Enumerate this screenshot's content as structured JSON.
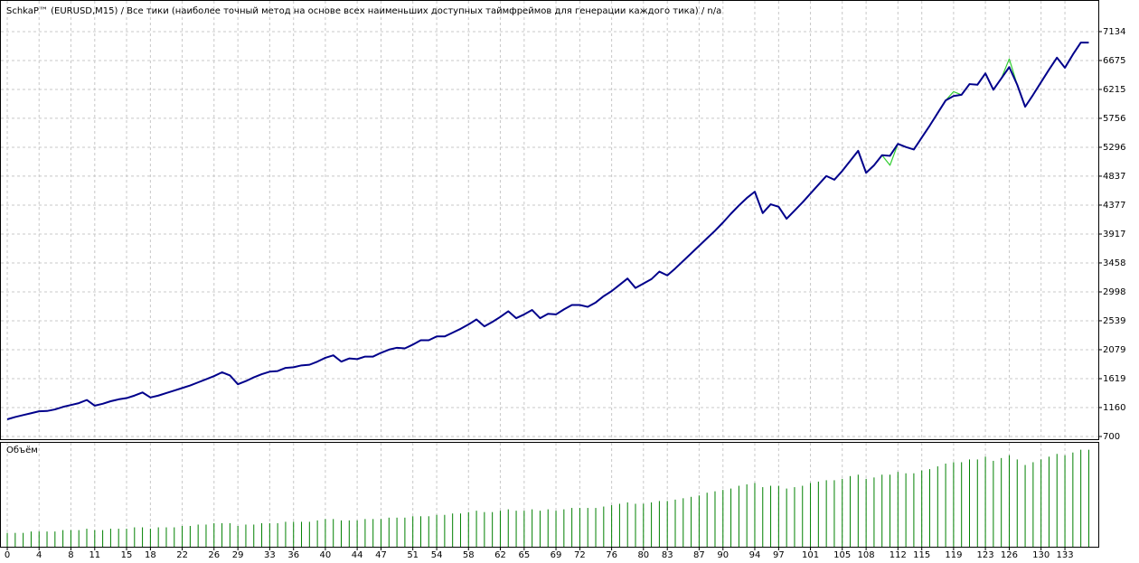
{
  "chart_data": [
    {
      "type": "line",
      "title": "SchkaP™ (EURUSD,M15) / Все тики (наиболее точный метод на основе всех наименьших доступных таймфреймов для генерации каждого тика) / n/a",
      "x": [
        0,
        1,
        2,
        3,
        4,
        5,
        6,
        7,
        8,
        9,
        10,
        11,
        12,
        13,
        14,
        15,
        16,
        17,
        18,
        19,
        20,
        21,
        22,
        23,
        24,
        25,
        26,
        27,
        28,
        29,
        30,
        31,
        32,
        33,
        34,
        35,
        36,
        37,
        38,
        39,
        40,
        41,
        42,
        43,
        44,
        45,
        46,
        47,
        48,
        49,
        50,
        51,
        52,
        53,
        54,
        55,
        56,
        57,
        58,
        59,
        60,
        61,
        62,
        63,
        64,
        65,
        66,
        67,
        68,
        69,
        70,
        71,
        72,
        73,
        74,
        75,
        76,
        77,
        78,
        79,
        80,
        81,
        82,
        83,
        84,
        85,
        86,
        87,
        88,
        89,
        90,
        91,
        92,
        93,
        94,
        95,
        96,
        97,
        98,
        99,
        100,
        101,
        102,
        103,
        104,
        105,
        106,
        107,
        108,
        109,
        110,
        111,
        112,
        113,
        114,
        115,
        116,
        117,
        118,
        119,
        120,
        121,
        122,
        123,
        124,
        125,
        126,
        127,
        128,
        129,
        130,
        131,
        132,
        133,
        134,
        135,
        136
      ],
      "series": [
        {
          "color": "#32cd32",
          "values": [
            973,
            1010,
            1040,
            1070,
            1100,
            1105,
            1130,
            1170,
            1200,
            1230,
            1280,
            1190,
            1220,
            1260,
            1290,
            1310,
            1350,
            1400,
            1320,
            1350,
            1390,
            1430,
            1470,
            1510,
            1560,
            1610,
            1660,
            1720,
            1670,
            1530,
            1580,
            1640,
            1690,
            1730,
            1740,
            1790,
            1800,
            1830,
            1840,
            1890,
            1950,
            1990,
            1890,
            1940,
            1930,
            1970,
            1970,
            2030,
            2080,
            2110,
            2100,
            2160,
            2230,
            2230,
            2290,
            2290,
            2350,
            2410,
            2480,
            2560,
            2450,
            2520,
            2600,
            2690,
            2580,
            2640,
            2710,
            2580,
            2650,
            2640,
            2720,
            2790,
            2790,
            2760,
            2830,
            2930,
            3010,
            3110,
            3210,
            3060,
            3130,
            3200,
            3320,
            3260,
            3370,
            3490,
            3610,
            3730,
            3850,
            3970,
            4100,
            4240,
            4370,
            4490,
            4590,
            4250,
            4390,
            4350,
            4160,
            4290,
            4420,
            4560,
            4700,
            4840,
            4780,
            4920,
            5080,
            5240,
            4890,
            5010,
            5170,
            5010,
            5350,
            5300,
            5260,
            5450,
            5640,
            5840,
            6040,
            6180,
            6130,
            6300,
            6290,
            6470,
            6210,
            6390,
            6700,
            6290,
            5940,
            6130,
            6330,
            6530,
            6720,
            6560,
            6770,
            6960,
            6960
          ]
        },
        {
          "color": "#00008b",
          "values": [
            973,
            1010,
            1040,
            1070,
            1100,
            1105,
            1130,
            1170,
            1200,
            1230,
            1280,
            1190,
            1220,
            1260,
            1290,
            1310,
            1350,
            1400,
            1320,
            1350,
            1390,
            1430,
            1470,
            1510,
            1560,
            1610,
            1660,
            1720,
            1670,
            1530,
            1580,
            1640,
            1690,
            1730,
            1740,
            1790,
            1800,
            1830,
            1840,
            1890,
            1950,
            1990,
            1890,
            1940,
            1930,
            1970,
            1970,
            2030,
            2080,
            2110,
            2100,
            2160,
            2230,
            2230,
            2290,
            2290,
            2350,
            2410,
            2480,
            2560,
            2450,
            2520,
            2600,
            2690,
            2580,
            2640,
            2710,
            2580,
            2650,
            2640,
            2720,
            2790,
            2790,
            2760,
            2830,
            2930,
            3010,
            3110,
            3210,
            3060,
            3130,
            3200,
            3320,
            3260,
            3370,
            3490,
            3610,
            3730,
            3850,
            3970,
            4100,
            4240,
            4370,
            4490,
            4590,
            4250,
            4390,
            4350,
            4160,
            4290,
            4420,
            4560,
            4700,
            4840,
            4780,
            4920,
            5080,
            5240,
            4890,
            5010,
            5170,
            5160,
            5350,
            5300,
            5260,
            5450,
            5640,
            5840,
            6040,
            6110,
            6130,
            6300,
            6290,
            6470,
            6210,
            6390,
            6570,
            6290,
            5940,
            6130,
            6330,
            6530,
            6720,
            6560,
            6770,
            6960,
            6960
          ]
        }
      ],
      "xlim": [
        -0.8,
        137.2
      ],
      "ylim": [
        657,
        7622
      ],
      "yticks": [
        700,
        1160,
        1619,
        2079,
        2539,
        2998,
        3458,
        3917,
        4377,
        4837,
        5296,
        5756,
        6215,
        6675,
        7134
      ],
      "grid": true
    },
    {
      "type": "bar",
      "title": "Объём",
      "color": "#008000",
      "values": [
        0.1,
        0.1,
        0.1,
        0.11,
        0.11,
        0.11,
        0.11,
        0.12,
        0.12,
        0.12,
        0.13,
        0.12,
        0.12,
        0.13,
        0.13,
        0.13,
        0.14,
        0.14,
        0.13,
        0.14,
        0.14,
        0.14,
        0.15,
        0.15,
        0.16,
        0.16,
        0.17,
        0.17,
        0.17,
        0.15,
        0.16,
        0.16,
        0.17,
        0.17,
        0.17,
        0.18,
        0.18,
        0.18,
        0.18,
        0.19,
        0.2,
        0.2,
        0.19,
        0.19,
        0.19,
        0.2,
        0.2,
        0.2,
        0.21,
        0.21,
        0.21,
        0.22,
        0.22,
        0.22,
        0.23,
        0.23,
        0.24,
        0.24,
        0.25,
        0.26,
        0.25,
        0.25,
        0.26,
        0.27,
        0.26,
        0.26,
        0.27,
        0.26,
        0.27,
        0.26,
        0.27,
        0.28,
        0.28,
        0.28,
        0.28,
        0.29,
        0.3,
        0.31,
        0.32,
        0.31,
        0.31,
        0.32,
        0.33,
        0.33,
        0.34,
        0.35,
        0.36,
        0.37,
        0.39,
        0.4,
        0.41,
        0.42,
        0.44,
        0.45,
        0.46,
        0.43,
        0.44,
        0.44,
        0.42,
        0.43,
        0.44,
        0.46,
        0.47,
        0.48,
        0.48,
        0.49,
        0.51,
        0.52,
        0.49,
        0.5,
        0.52,
        0.52,
        0.54,
        0.53,
        0.53,
        0.55,
        0.56,
        0.58,
        0.6,
        0.61,
        0.61,
        0.63,
        0.63,
        0.65,
        0.62,
        0.64,
        0.66,
        0.63,
        0.59,
        0.61,
        0.63,
        0.65,
        0.67,
        0.66,
        0.68,
        0.7,
        0.7
      ],
      "ylim": [
        0,
        0.75
      ],
      "xticks": [
        0,
        4,
        8,
        11,
        15,
        18,
        22,
        26,
        29,
        33,
        36,
        40,
        44,
        47,
        51,
        54,
        58,
        62,
        65,
        69,
        72,
        76,
        80,
        83,
        87,
        90,
        94,
        97,
        101,
        105,
        108,
        112,
        115,
        119,
        123,
        126,
        130,
        133
      ],
      "grid": true
    }
  ]
}
